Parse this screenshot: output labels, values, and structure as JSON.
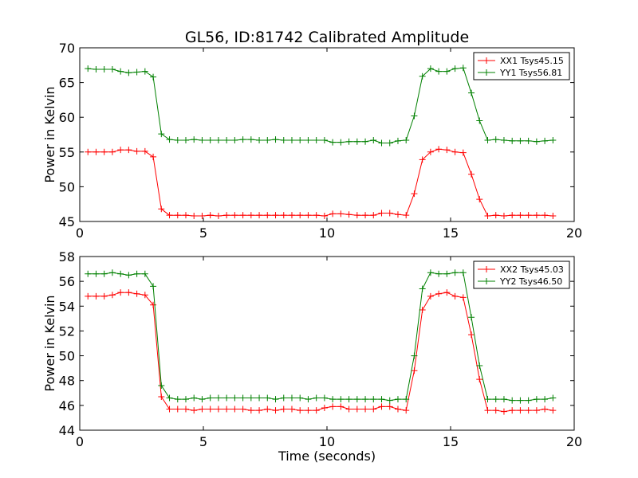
{
  "title": "GL56, ID:81742 Calibrated Amplitude",
  "chart_data": [
    {
      "type": "line",
      "xlabel": "",
      "ylabel": "Power in Kelvin",
      "xlim": [
        0,
        20
      ],
      "ylim": [
        45,
        70
      ],
      "xticks": [
        0,
        5,
        10,
        15,
        20
      ],
      "yticks": [
        45,
        50,
        55,
        60,
        65,
        70
      ],
      "grid": false,
      "legend_placement": "top-right",
      "x": [
        0.33,
        0.66,
        0.99,
        1.32,
        1.65,
        1.98,
        2.31,
        2.64,
        2.97,
        3.3,
        3.63,
        3.96,
        4.29,
        4.62,
        4.95,
        5.28,
        5.61,
        5.94,
        6.27,
        6.6,
        6.93,
        7.26,
        7.59,
        7.92,
        8.25,
        8.58,
        8.91,
        9.24,
        9.57,
        9.9,
        10.23,
        10.56,
        10.89,
        11.22,
        11.55,
        11.88,
        12.21,
        12.54,
        12.87,
        13.2,
        13.53,
        13.86,
        14.19,
        14.52,
        14.85,
        15.18,
        15.51,
        15.84,
        16.17,
        16.5,
        16.83,
        17.16,
        17.49,
        17.82,
        18.15,
        18.48,
        18.81,
        19.14
      ],
      "series": [
        {
          "name": "XX1 Tsys45.15",
          "color": "#ff0000",
          "values": [
            55.0,
            55.0,
            55.0,
            55.0,
            55.3,
            55.3,
            55.1,
            55.1,
            54.3,
            46.8,
            45.9,
            45.9,
            45.9,
            45.8,
            45.8,
            45.9,
            45.8,
            45.9,
            45.9,
            45.9,
            45.9,
            45.9,
            45.9,
            45.9,
            45.9,
            45.9,
            45.9,
            45.9,
            45.9,
            45.8,
            46.1,
            46.1,
            46.0,
            45.9,
            45.9,
            45.9,
            46.2,
            46.2,
            46.0,
            45.9,
            49.0,
            53.9,
            55.0,
            55.4,
            55.3,
            55.0,
            54.9,
            51.8,
            48.2,
            45.8,
            45.9,
            45.8,
            45.9,
            45.9,
            45.9,
            45.9,
            45.9,
            45.8
          ]
        },
        {
          "name": "YY1 Tsys56.81",
          "color": "#008000",
          "values": [
            67.0,
            66.9,
            66.9,
            66.9,
            66.6,
            66.4,
            66.5,
            66.6,
            65.8,
            57.6,
            56.8,
            56.7,
            56.7,
            56.8,
            56.7,
            56.7,
            56.7,
            56.7,
            56.7,
            56.8,
            56.8,
            56.7,
            56.7,
            56.8,
            56.7,
            56.7,
            56.7,
            56.7,
            56.7,
            56.7,
            56.4,
            56.4,
            56.5,
            56.5,
            56.5,
            56.7,
            56.3,
            56.3,
            56.6,
            56.7,
            60.2,
            65.9,
            67.0,
            66.6,
            66.6,
            67.0,
            67.1,
            63.5,
            59.5,
            56.7,
            56.8,
            56.7,
            56.6,
            56.6,
            56.6,
            56.5,
            56.6,
            56.7
          ]
        }
      ]
    },
    {
      "type": "line",
      "xlabel": "Time (seconds)",
      "ylabel": "Power in Kelvin",
      "xlim": [
        0,
        20
      ],
      "ylim": [
        44,
        58
      ],
      "xticks": [
        0,
        5,
        10,
        15,
        20
      ],
      "yticks": [
        44,
        46,
        48,
        50,
        52,
        54,
        56,
        58
      ],
      "grid": false,
      "legend_placement": "top-right",
      "x": [
        0.33,
        0.66,
        0.99,
        1.32,
        1.65,
        1.98,
        2.31,
        2.64,
        2.97,
        3.3,
        3.63,
        3.96,
        4.29,
        4.62,
        4.95,
        5.28,
        5.61,
        5.94,
        6.27,
        6.6,
        6.93,
        7.26,
        7.59,
        7.92,
        8.25,
        8.58,
        8.91,
        9.24,
        9.57,
        9.9,
        10.23,
        10.56,
        10.89,
        11.22,
        11.55,
        11.88,
        12.21,
        12.54,
        12.87,
        13.2,
        13.53,
        13.86,
        14.19,
        14.52,
        14.85,
        15.18,
        15.51,
        15.84,
        16.17,
        16.5,
        16.83,
        17.16,
        17.49,
        17.82,
        18.15,
        18.48,
        18.81,
        19.14
      ],
      "series": [
        {
          "name": "XX2 Tsys45.03",
          "color": "#ff0000",
          "values": [
            54.8,
            54.8,
            54.8,
            54.9,
            55.1,
            55.1,
            55.0,
            54.9,
            54.1,
            46.7,
            45.7,
            45.7,
            45.7,
            45.6,
            45.7,
            45.7,
            45.7,
            45.7,
            45.7,
            45.7,
            45.6,
            45.6,
            45.7,
            45.6,
            45.7,
            45.7,
            45.6,
            45.6,
            45.6,
            45.8,
            45.9,
            45.9,
            45.7,
            45.7,
            45.7,
            45.7,
            45.9,
            45.9,
            45.7,
            45.6,
            48.8,
            53.7,
            54.8,
            55.0,
            55.1,
            54.8,
            54.7,
            51.7,
            48.1,
            45.6,
            45.6,
            45.5,
            45.6,
            45.6,
            45.6,
            45.6,
            45.7,
            45.6
          ]
        },
        {
          "name": "YY2 Tsys46.50",
          "color": "#008000",
          "values": [
            56.6,
            56.6,
            56.6,
            56.7,
            56.6,
            56.5,
            56.6,
            56.6,
            55.6,
            47.6,
            46.6,
            46.5,
            46.5,
            46.6,
            46.5,
            46.6,
            46.6,
            46.6,
            46.6,
            46.6,
            46.6,
            46.6,
            46.6,
            46.5,
            46.6,
            46.6,
            46.6,
            46.5,
            46.6,
            46.6,
            46.5,
            46.5,
            46.5,
            46.5,
            46.5,
            46.5,
            46.5,
            46.4,
            46.5,
            46.5,
            50.0,
            55.4,
            56.7,
            56.6,
            56.6,
            56.7,
            56.7,
            53.1,
            49.2,
            46.5,
            46.5,
            46.5,
            46.4,
            46.4,
            46.4,
            46.5,
            46.5,
            46.6
          ]
        }
      ]
    }
  ]
}
